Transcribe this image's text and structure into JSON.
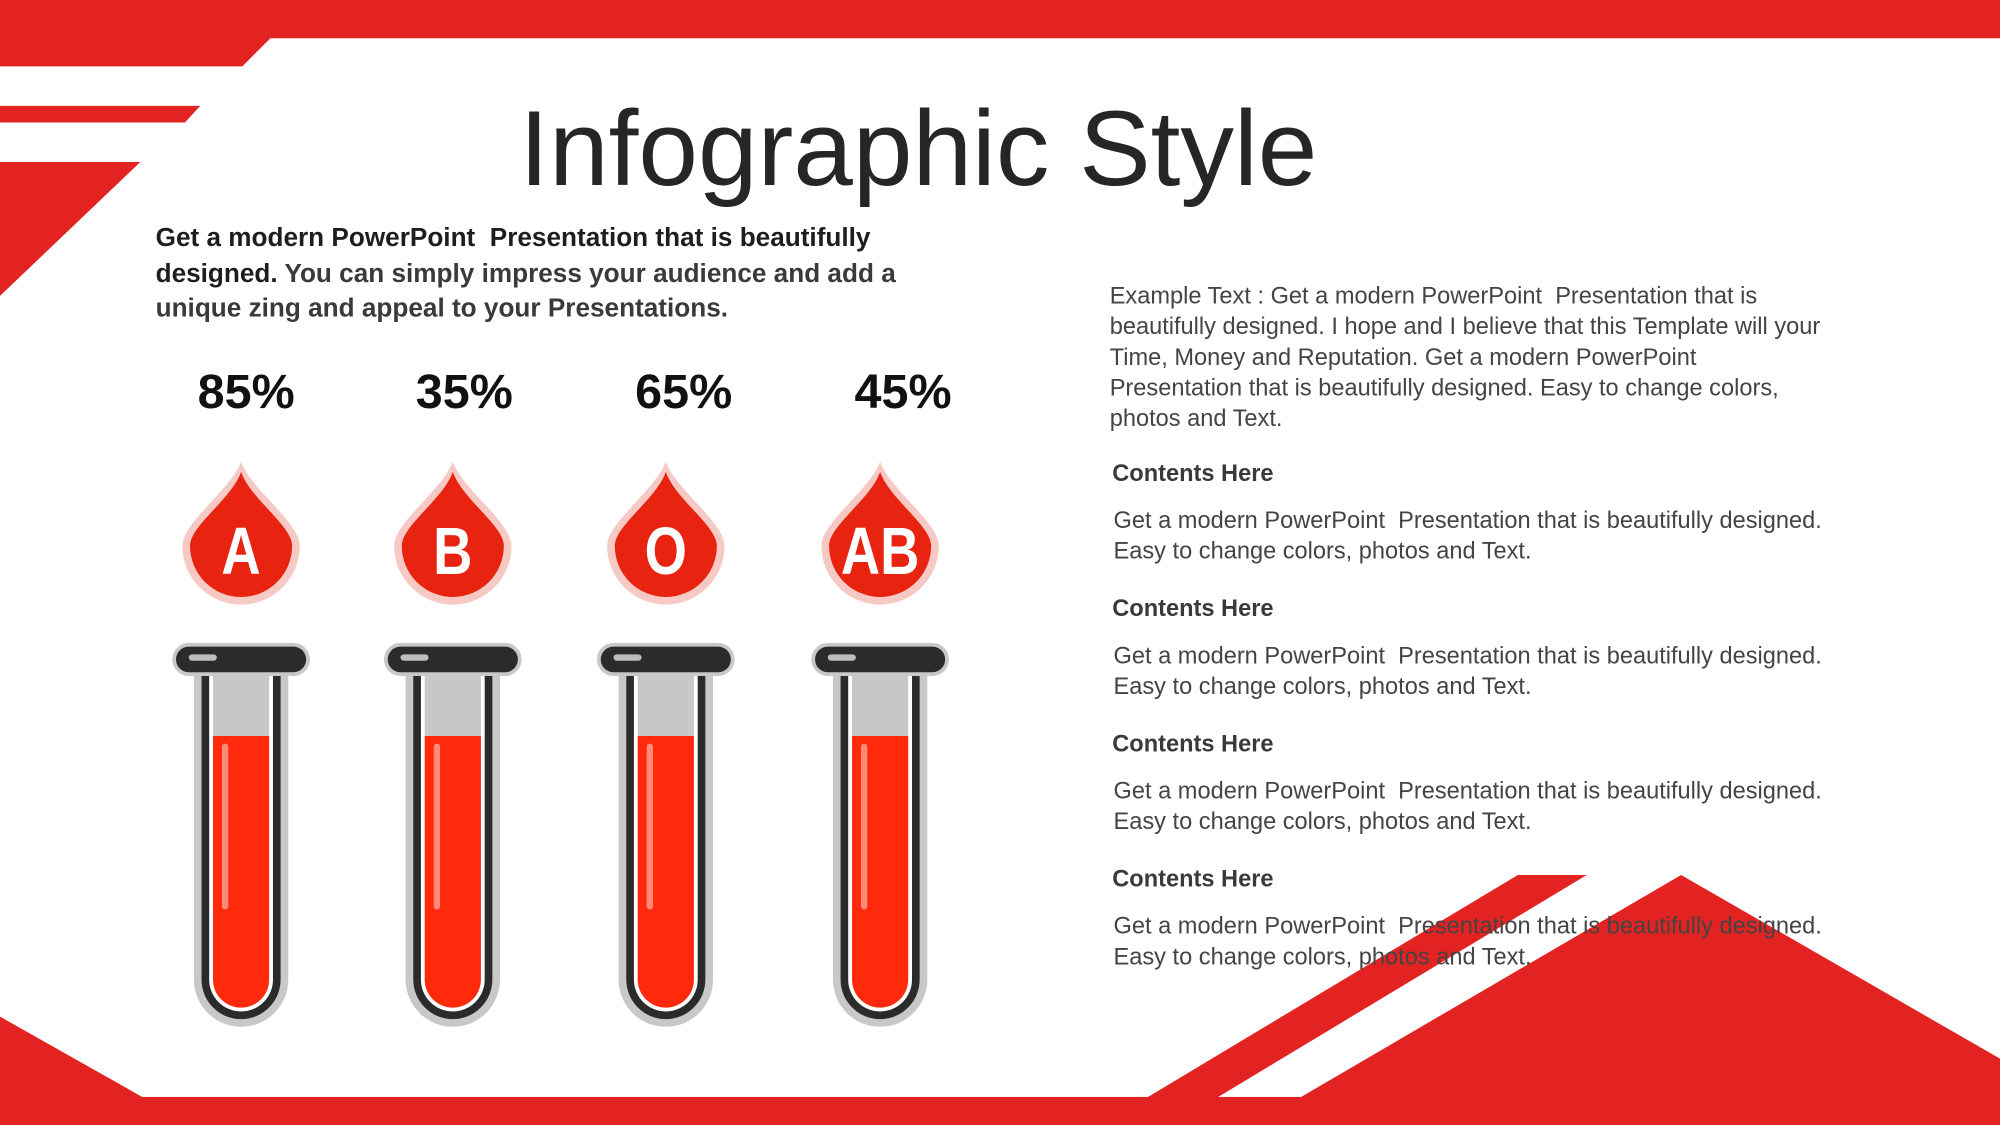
{
  "title": "Infographic Style",
  "intro": {
    "strong": "Get a modern PowerPoint  Presentation that is beautifully designed.",
    "rest": "You can simply impress your audience and add a unique zing and appeal to your Presentations."
  },
  "blood_types": [
    {
      "percent": "85%",
      "type": "A"
    },
    {
      "percent": "35%",
      "type": "B"
    },
    {
      "percent": "65%",
      "type": "O"
    },
    {
      "percent": "45%",
      "type": "AB"
    }
  ],
  "example_text": [
    "Example Text : Get a modern PowerPoint  Presentation that is",
    "beautifully designed. I hope and I believe that this Template will your",
    "Time, Money and Reputation. Get a modern PowerPoint",
    "Presentation that is beautifully designed. Easy to change colors,",
    "photos and Text."
  ],
  "sections": [
    {
      "heading": "Contents Here",
      "lines": [
        "Get a modern PowerPoint  Presentation that is beautifully designed.",
        "Easy to change colors, photos and Text."
      ]
    },
    {
      "heading": "Contents Here",
      "lines": [
        "Get a modern PowerPoint  Presentation that is beautifully designed.",
        "Easy to change colors, photos and Text."
      ]
    },
    {
      "heading": "Contents Here",
      "lines": [
        "Get a modern PowerPoint  Presentation that is beautifully designed.",
        "Easy to change colors, photos and Text."
      ]
    },
    {
      "heading": "Contents Here",
      "lines": [
        "Get a modern PowerPoint  Presentation that is beautifully designed.",
        "Easy to change colors, photos and Text."
      ]
    }
  ]
}
